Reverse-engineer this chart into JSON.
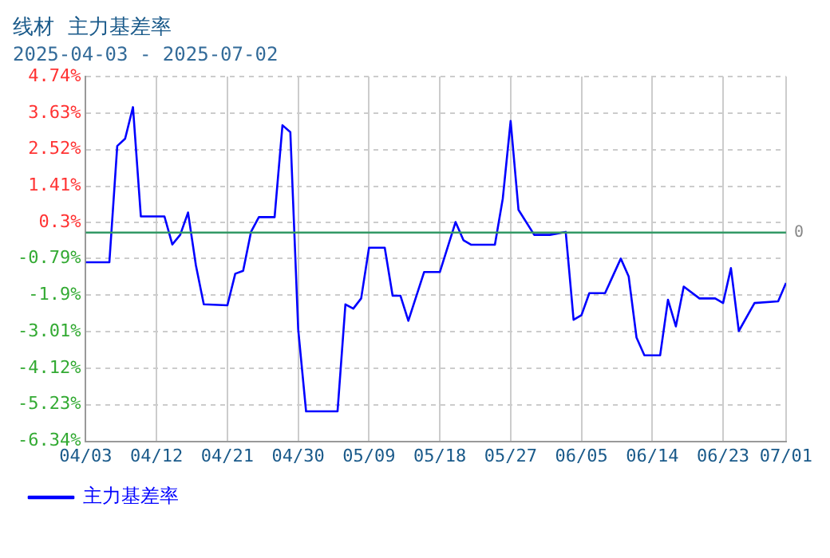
{
  "chart_data": {
    "type": "line",
    "title": "线材  主力基差率",
    "subtitle": "2025-04-03 - 2025-07-02",
    "x": [
      "2025-04-03",
      "2025-04-06",
      "2025-04-07",
      "2025-04-08",
      "2025-04-09",
      "2025-04-10",
      "2025-04-13",
      "2025-04-14",
      "2025-04-15",
      "2025-04-16",
      "2025-04-17",
      "2025-04-18",
      "2025-04-21",
      "2025-04-22",
      "2025-04-23",
      "2025-04-24",
      "2025-04-25",
      "2025-04-27",
      "2025-04-28",
      "2025-04-29",
      "2025-04-30",
      "2025-05-01",
      "2025-05-05",
      "2025-05-06",
      "2025-05-07",
      "2025-05-08",
      "2025-05-09",
      "2025-05-11",
      "2025-05-12",
      "2025-05-13",
      "2025-05-14",
      "2025-05-16",
      "2025-05-18",
      "2025-05-20",
      "2025-05-21",
      "2025-05-22",
      "2025-05-25",
      "2025-05-26",
      "2025-05-27",
      "2025-05-28",
      "2025-05-30",
      "2025-06-01",
      "2025-06-03",
      "2025-06-04",
      "2025-06-05",
      "2025-06-06",
      "2025-06-08",
      "2025-06-10",
      "2025-06-11",
      "2025-06-12",
      "2025-06-13",
      "2025-06-15",
      "2025-06-16",
      "2025-06-17",
      "2025-06-18",
      "2025-06-20",
      "2025-06-22",
      "2025-06-23",
      "2025-06-24",
      "2025-06-25",
      "2025-06-27",
      "2025-06-30",
      "2025-07-01"
    ],
    "series": [
      {
        "name": "主力基差率",
        "color": "#0000ff",
        "values": [
          -0.9,
          -0.9,
          2.63,
          2.85,
          3.81,
          0.49,
          0.49,
          -0.36,
          -0.07,
          0.61,
          -1.0,
          -2.18,
          -2.21,
          -1.25,
          -1.16,
          0.02,
          0.47,
          0.47,
          3.26,
          3.05,
          -2.94,
          -5.43,
          -5.43,
          -2.18,
          -2.31,
          -2.0,
          -0.46,
          -0.46,
          -1.92,
          -1.92,
          -2.68,
          -1.2,
          -1.2,
          0.32,
          -0.23,
          -0.37,
          -0.37,
          1.03,
          3.39,
          0.69,
          -0.07,
          -0.07,
          0.02,
          -2.65,
          -2.51,
          -1.84,
          -1.84,
          -0.79,
          -1.33,
          -3.19,
          -3.73,
          -3.73,
          -2.04,
          -2.85,
          -1.64,
          -2.0,
          -2.0,
          -2.14,
          -1.08,
          -2.99,
          -2.14,
          -2.09,
          -1.53
        ]
      }
    ],
    "xlim": [
      "2025-04-03",
      "2025-07-01"
    ],
    "xticks": [
      {
        "value": "2025-04-03",
        "label": "04/03"
      },
      {
        "value": "2025-04-12",
        "label": "04/12"
      },
      {
        "value": "2025-04-21",
        "label": "04/21"
      },
      {
        "value": "2025-04-30",
        "label": "04/30"
      },
      {
        "value": "2025-05-09",
        "label": "05/09"
      },
      {
        "value": "2025-05-18",
        "label": "05/18"
      },
      {
        "value": "2025-05-27",
        "label": "05/27"
      },
      {
        "value": "2025-06-05",
        "label": "06/05"
      },
      {
        "value": "2025-06-14",
        "label": "06/14"
      },
      {
        "value": "2025-06-23",
        "label": "06/23"
      },
      {
        "value": "2025-07-01",
        "label": "07/01"
      }
    ],
    "ylim": [
      -6.34,
      4.74
    ],
    "yticks": [
      {
        "value": 4.74,
        "label": "4.74%"
      },
      {
        "value": 3.63,
        "label": "3.63%"
      },
      {
        "value": 2.52,
        "label": "2.52%"
      },
      {
        "value": 1.41,
        "label": "1.41%"
      },
      {
        "value": 0.3,
        "label": "0.3%"
      },
      {
        "value": -0.79,
        "label": "-0.79%"
      },
      {
        "value": -1.9,
        "label": "-1.9%"
      },
      {
        "value": -3.01,
        "label": "-3.01%"
      },
      {
        "value": -4.12,
        "label": "-4.12%"
      },
      {
        "value": -5.23,
        "label": "-5.23%"
      },
      {
        "value": -6.34,
        "label": "-6.34%"
      }
    ],
    "ref_lines": [
      {
        "axis": "y",
        "value": 0,
        "label": "0",
        "color": "#339966"
      }
    ],
    "grid": true,
    "legend": "bottom",
    "marker": "none",
    "line_style": "solid"
  }
}
